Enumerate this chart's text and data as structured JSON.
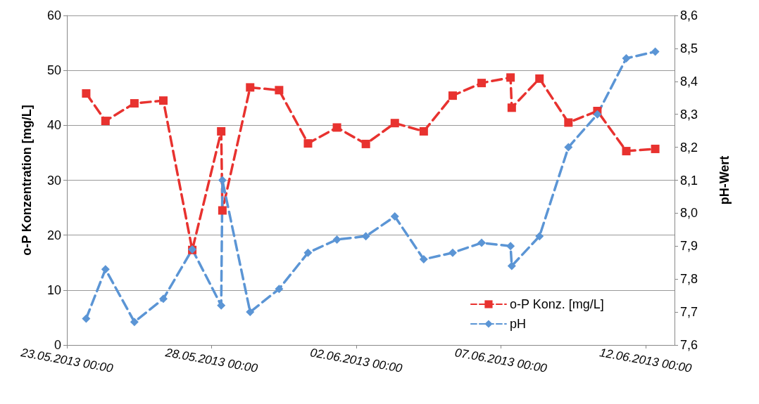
{
  "chart_data": {
    "type": "line",
    "x": [
      "2013-05-23T16:00",
      "2013-05-24T08:00",
      "2013-05-25T08:00",
      "2013-05-26T08:00",
      "2013-05-27T08:00",
      "2013-05-28T08:00",
      "2013-05-28T09:00",
      "2013-05-29T08:00",
      "2013-05-30T08:00",
      "2013-05-31T08:00",
      "2013-06-01T08:00",
      "2013-06-02T08:00",
      "2013-06-03T08:00",
      "2013-06-04T08:00",
      "2013-06-05T08:00",
      "2013-06-06T08:00",
      "2013-06-07T08:00",
      "2013-06-07T09:00",
      "2013-06-08T08:00",
      "2013-06-09T08:00",
      "2013-06-10T08:00",
      "2013-06-11T08:00",
      "2013-06-12T08:00"
    ],
    "series": [
      {
        "name": "o-P Konz. [mg/L]",
        "color": "#e8322f",
        "marker": "square",
        "values": [
          45.8,
          40.8,
          44.0,
          44.5,
          17.3,
          38.9,
          24.5,
          46.9,
          46.4,
          36.7,
          39.6,
          36.6,
          40.4,
          38.9,
          45.4,
          47.7,
          48.7,
          43.2,
          48.5,
          40.5,
          42.6,
          35.3,
          35.7
        ]
      },
      {
        "name": "pH",
        "color": "#5b95d5",
        "marker": "diamond",
        "axis": "y2",
        "values": [
          7.68,
          7.83,
          7.67,
          7.74,
          7.89,
          7.72,
          8.1,
          7.7,
          7.77,
          7.88,
          7.92,
          7.93,
          7.99,
          7.86,
          7.88,
          7.91,
          7.9,
          7.84,
          7.93,
          8.2,
          8.3,
          8.47,
          8.49
        ]
      }
    ],
    "ylabel": "o-P Konzentration [mg/L]",
    "y2label": "pH-Wert",
    "xlim": [
      "2013-05-23T00:00",
      "2013-06-13T00:00"
    ],
    "xticks": [
      {
        "value": "2013-05-23T00:00",
        "label": "23.05.2013 00:00"
      },
      {
        "value": "2013-05-28T00:00",
        "label": "28.05.2013 00:00"
      },
      {
        "value": "2013-06-02T00:00",
        "label": "02.06.2013 00:00"
      },
      {
        "value": "2013-06-07T00:00",
        "label": "07.06.2013 00:00"
      },
      {
        "value": "2013-06-12T00:00",
        "label": "12.06.2013 00:00"
      }
    ],
    "ylim": [
      0,
      60
    ],
    "yticks": [
      0,
      10,
      20,
      30,
      40,
      50,
      60
    ],
    "y2lim": [
      7.6,
      8.6
    ],
    "y2ticks": [
      {
        "value": 7.6,
        "label": "7,6"
      },
      {
        "value": 7.7,
        "label": "7,7"
      },
      {
        "value": 7.8,
        "label": "7,8"
      },
      {
        "value": 7.9,
        "label": "7,9"
      },
      {
        "value": 8.0,
        "label": "8,0"
      },
      {
        "value": 8.1,
        "label": "8,1"
      },
      {
        "value": 8.2,
        "label": "8,2"
      },
      {
        "value": 8.3,
        "label": "8,3"
      },
      {
        "value": 8.4,
        "label": "8,4"
      },
      {
        "value": 8.5,
        "label": "8,5"
      },
      {
        "value": 8.6,
        "label": "8,6"
      }
    ],
    "grid": "y",
    "legend": "bottom right",
    "line_style": "dashed"
  }
}
